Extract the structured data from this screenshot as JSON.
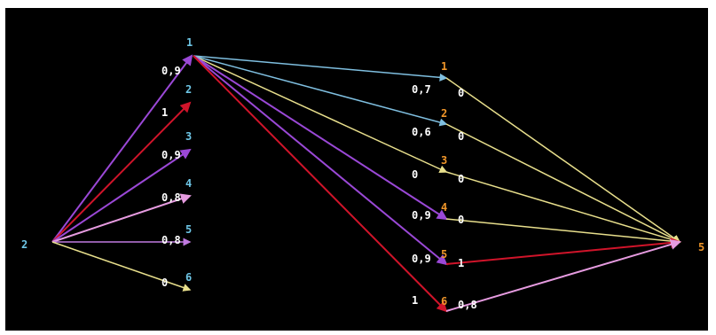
{
  "colors": {
    "background": "#000000",
    "node_label_cyan": "#6ec6e6",
    "node_label_orange": "#f0962a",
    "weight_label": "#ffffff"
  },
  "nodes": {
    "source": "2",
    "hub": "1",
    "left_targets": [
      "2",
      "3",
      "4",
      "5",
      "6"
    ],
    "right_nodes": [
      "1",
      "2",
      "3",
      "4",
      "5",
      "6"
    ],
    "sink": "5"
  },
  "weights": {
    "source_to_hub": "0,9",
    "source_to_left": [
      "1",
      "0,9",
      "0,8",
      "0,8",
      "0"
    ],
    "hub_to_right": [
      "0,7",
      "0,6",
      "0",
      "0,9",
      "0,9",
      "1"
    ],
    "right_to_sink": [
      "0",
      "0",
      "0",
      "0",
      "1",
      "0,8"
    ]
  }
}
